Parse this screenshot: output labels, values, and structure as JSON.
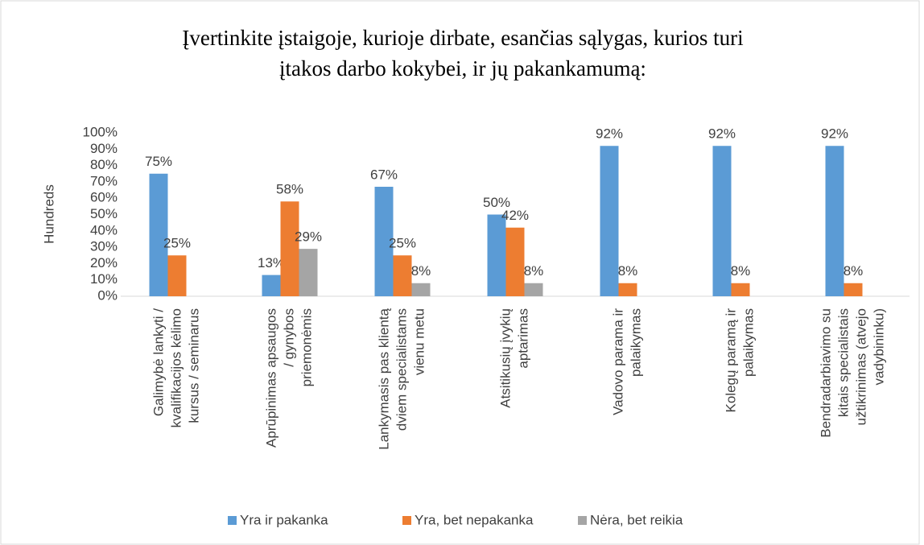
{
  "chart_data": {
    "type": "bar",
    "title": [
      "Įvertinkite įstaigoje, kurioje dirbate, esančias sąlygas, kurios turi",
      "įtakos darbo kokybei, ir jų pakankamumą:"
    ],
    "ylabel": "Hundreds",
    "categories": [
      [
        "Galimybė lankyti /",
        "kvalifikacijos kėlimo",
        "kursus / seminarus"
      ],
      [
        "Aprūpinimas apsaugos",
        "/ gynybos",
        "priemonėmis"
      ],
      [
        "Lankymasis pas klientą",
        "dviem specialistams",
        "vienu metu"
      ],
      [
        "Atsitikusių įvykių",
        "aptarimas"
      ],
      [
        "Vadovo parama ir",
        "palaikymas"
      ],
      [
        "Kolegų paramą ir",
        "palaikymas"
      ],
      [
        "Bendradarbiavimo su",
        "kitais specialistais",
        "užtikrinimas (atvejo",
        "vadybininku)"
      ]
    ],
    "series": [
      {
        "name": "Yra ir pakanka",
        "color": "#5b9bd5",
        "values": [
          75,
          13,
          67,
          50,
          92,
          92,
          92
        ],
        "value_labels": [
          "75%",
          "13%",
          "67%",
          "50%",
          "92%",
          "92%",
          "92%"
        ]
      },
      {
        "name": "Yra, bet nepakanka",
        "color": "#ed7d31",
        "values": [
          25,
          58,
          25,
          42,
          8,
          8,
          8
        ],
        "value_labels": [
          "25%",
          "58%",
          "25%",
          "42%",
          "8%",
          "8%",
          "8%"
        ]
      },
      {
        "name": "Nėra, bet reikia",
        "color": "#a5a5a5",
        "values": [
          null,
          29,
          8,
          8,
          null,
          null,
          null
        ],
        "value_labels": [
          null,
          "29%",
          "8%",
          "8%",
          null,
          null,
          null
        ]
      }
    ],
    "ylim": [
      0,
      100
    ],
    "yticks": [
      {
        "value": 0,
        "label": "0%"
      },
      {
        "value": 10,
        "label": "10%"
      },
      {
        "value": 20,
        "label": "20%"
      },
      {
        "value": 30,
        "label": "30%"
      },
      {
        "value": 40,
        "label": "40%"
      },
      {
        "value": 50,
        "label": "50%"
      },
      {
        "value": 60,
        "label": "60%"
      },
      {
        "value": 70,
        "label": "70%"
      },
      {
        "value": 80,
        "label": "80%"
      },
      {
        "value": 90,
        "label": "90%"
      },
      {
        "value": 100,
        "label": "100%"
      }
    ],
    "legend": "bottom"
  }
}
